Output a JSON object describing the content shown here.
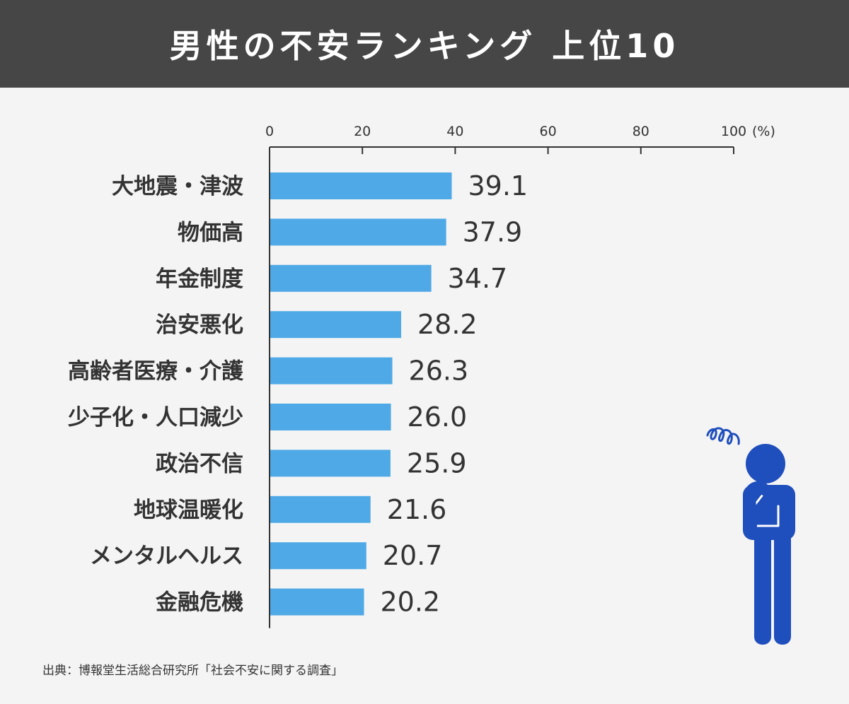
{
  "title": "男性の不安ランキング 上位10",
  "source": "出典：博報堂生活総合研究所「社会不安に関する調査」",
  "colors": {
    "header_bg": "#464646",
    "bar": "#4fa9e6",
    "axis": "#333333",
    "person": "#1f4ebd"
  },
  "chart_data": {
    "type": "bar",
    "orientation": "horizontal",
    "categories": [
      "大地震・津波",
      "物価高",
      "年金制度",
      "治安悪化",
      "高齢者医療・介護",
      "少子化・人口減少",
      "政治不信",
      "地球温暖化",
      "メンタルヘルス",
      "金融危機"
    ],
    "values": [
      39.1,
      37.9,
      34.7,
      28.2,
      26.3,
      26.0,
      25.9,
      21.6,
      20.7,
      20.2
    ],
    "value_labels": [
      "39.1",
      "37.9",
      "34.7",
      "28.2",
      "26.3",
      "26.0",
      "25.9",
      "21.6",
      "20.7",
      "20.2"
    ],
    "xlim": [
      0,
      100
    ],
    "xticks": [
      0,
      20,
      40,
      60,
      80,
      100
    ],
    "xtick_labels": [
      "0",
      "20",
      "40",
      "60",
      "80",
      "100"
    ],
    "unit_label": "(%)",
    "axis_position": "top",
    "grid": false
  },
  "illustration": {
    "icon": "thinking-person-icon",
    "swirl_icon": "confusion-swirl-icon"
  }
}
